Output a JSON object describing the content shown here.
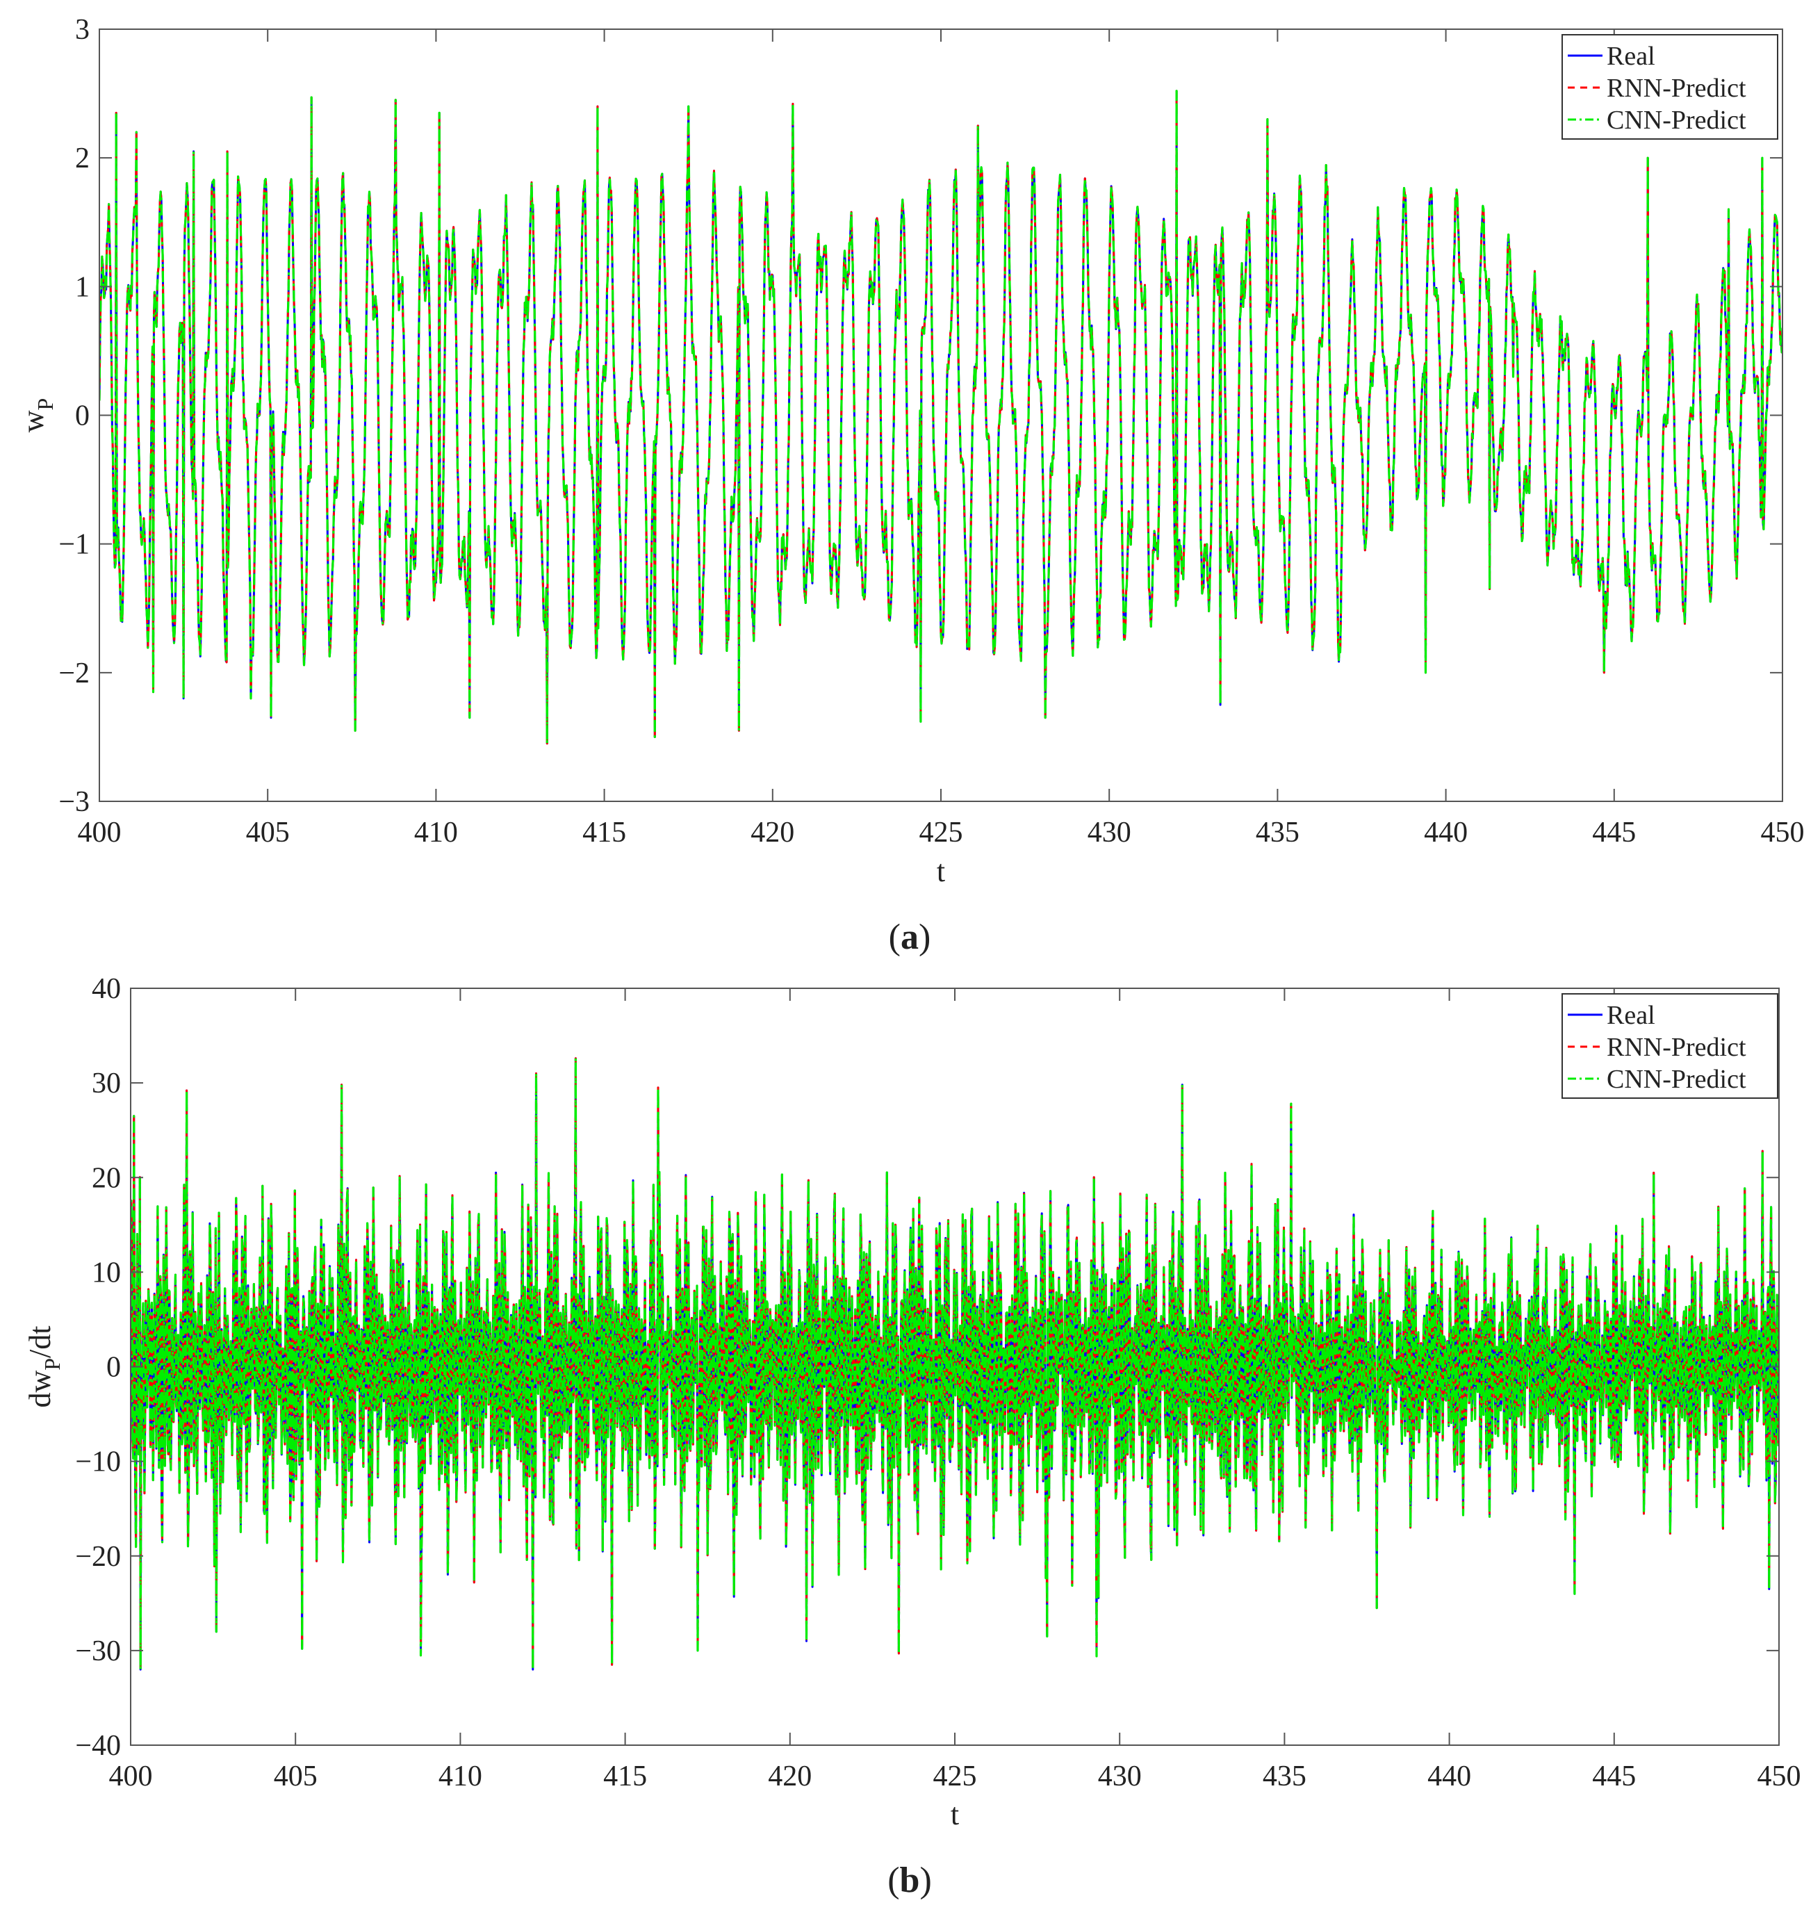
{
  "colors": {
    "real": "#0000ff",
    "rnn": "#ff0000",
    "cnn": "#00ee00",
    "axis": "#555555",
    "text": "#222222"
  },
  "chart_data": [
    {
      "id": "a",
      "type": "line",
      "caption": "a",
      "xlabel": "t",
      "ylabel_main": "w",
      "ylabel_sub": "P",
      "ylabel_tail": "",
      "xlim": [
        400,
        450
      ],
      "ylim": [
        -3,
        3
      ],
      "xticks": [
        400,
        405,
        410,
        415,
        420,
        425,
        430,
        435,
        440,
        445,
        450
      ],
      "yticks": [
        -3,
        -2,
        -1,
        0,
        1,
        2,
        3
      ],
      "ytick_labels": [
        "−3",
        "−2",
        "−1",
        "0",
        "1",
        "2",
        "3"
      ],
      "grid": false,
      "legend_position": "top-right",
      "series": [
        {
          "name": "Real",
          "style": "solid",
          "color_key": "real"
        },
        {
          "name": "RNN-Predict",
          "style": "dashed",
          "color_key": "rnn"
        },
        {
          "name": "CNN-Predict",
          "style": "dashdot",
          "color_key": "cnn"
        }
      ],
      "signal": {
        "sample_step": 0.02,
        "envelope_peaks": [
          [
            400.5,
            2.35
          ],
          [
            401.1,
            2.2
          ],
          [
            401.6,
            -2.15
          ],
          [
            402.5,
            -2.2
          ],
          [
            402.8,
            2.05
          ],
          [
            403.8,
            2.05
          ],
          [
            404.5,
            -2.2
          ],
          [
            405.1,
            -2.35
          ],
          [
            406.3,
            2.47
          ],
          [
            407.6,
            -2.45
          ],
          [
            408.8,
            2.45
          ],
          [
            410.1,
            2.35
          ],
          [
            411.0,
            -2.35
          ],
          [
            413.3,
            -2.55
          ],
          [
            414.8,
            2.4
          ],
          [
            416.5,
            -2.5
          ],
          [
            417.5,
            2.4
          ],
          [
            419.0,
            -2.45
          ],
          [
            420.6,
            2.42
          ],
          [
            424.4,
            -2.38
          ],
          [
            426.1,
            2.25
          ],
          [
            428.1,
            -2.35
          ],
          [
            432.0,
            2.52
          ],
          [
            433.3,
            -2.25
          ],
          [
            434.7,
            2.3
          ],
          [
            439.4,
            -2.0
          ],
          [
            441.3,
            -1.35
          ],
          [
            442.0,
            0.3
          ],
          [
            444.7,
            -2.0
          ],
          [
            446.0,
            2.0
          ],
          [
            448.4,
            1.6
          ],
          [
            449.4,
            2.0
          ]
        ]
      }
    },
    {
      "id": "b",
      "type": "line",
      "caption": "b",
      "xlabel": "t",
      "ylabel_main": "dw",
      "ylabel_sub": "P",
      "ylabel_tail": "/dt",
      "xlim": [
        400,
        450
      ],
      "ylim": [
        -40,
        40
      ],
      "xticks": [
        400,
        405,
        410,
        415,
        420,
        425,
        430,
        435,
        440,
        445,
        450
      ],
      "yticks": [
        -40,
        -30,
        -20,
        -10,
        0,
        10,
        20,
        30,
        40
      ],
      "ytick_labels": [
        "−40",
        "−30",
        "−20",
        "−10",
        "0",
        "10",
        "20",
        "30",
        "40"
      ],
      "grid": false,
      "legend_position": "top-right",
      "series": [
        {
          "name": "Real",
          "style": "solid",
          "color_key": "real"
        },
        {
          "name": "RNN-Predict",
          "style": "dashed",
          "color_key": "rnn"
        },
        {
          "name": "CNN-Predict",
          "style": "dashdot",
          "color_key": "cnn"
        }
      ],
      "signal": {
        "sample_step": 0.02,
        "envelope_peaks": [
          [
            400.1,
            26.5
          ],
          [
            400.3,
            -32.0
          ],
          [
            401.7,
            29.2
          ],
          [
            402.6,
            -28.0
          ],
          [
            405.2,
            -29.8
          ],
          [
            406.4,
            29.8
          ],
          [
            408.8,
            -30.5
          ],
          [
            412.3,
            31.0
          ],
          [
            413.5,
            32.6
          ],
          [
            412.2,
            -32.0
          ],
          [
            414.6,
            -31.5
          ],
          [
            416.0,
            29.5
          ],
          [
            417.2,
            -30.0
          ],
          [
            420.5,
            -29.0
          ],
          [
            423.3,
            -30.3
          ],
          [
            427.8,
            -28.5
          ],
          [
            429.3,
            -30.6
          ],
          [
            431.9,
            29.8
          ],
          [
            435.2,
            27.8
          ],
          [
            437.8,
            -25.5
          ],
          [
            443.8,
            -24.0
          ],
          [
            446.2,
            20.5
          ],
          [
            449.5,
            22.8
          ],
          [
            449.7,
            -23.5
          ]
        ]
      }
    }
  ]
}
